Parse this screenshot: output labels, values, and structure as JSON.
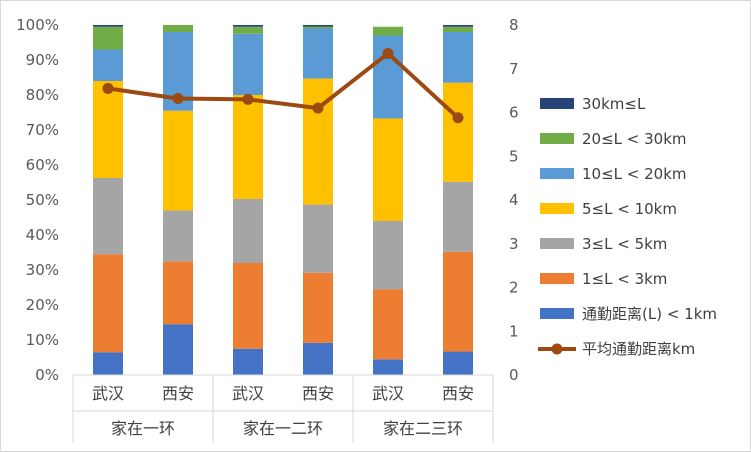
{
  "chart_data": {
    "type": "bar",
    "stacked": true,
    "categories": [
      "武汉",
      "西安",
      "武汉",
      "西安",
      "武汉",
      "西安"
    ],
    "groups": [
      {
        "label": "家在一环",
        "members": [
          0,
          1
        ]
      },
      {
        "label": "家在一二环",
        "members": [
          2,
          3
        ]
      },
      {
        "label": "家在二三环",
        "members": [
          4,
          5
        ]
      }
    ],
    "y_left": {
      "min": 0,
      "max": 100,
      "step": 10,
      "ticks": [
        "0%",
        "10%",
        "20%",
        "30%",
        "40%",
        "50%",
        "60%",
        "70%",
        "80%",
        "90%",
        "100%"
      ]
    },
    "y_right": {
      "min": 0,
      "max": 8,
      "step": 1,
      "ticks": [
        "0",
        "1",
        "2",
        "3",
        "4",
        "5",
        "6",
        "7",
        "8"
      ]
    },
    "series": [
      {
        "name": "通勤距离(L) < 1km",
        "color": "#4472c4",
        "values": [
          6.5,
          14.5,
          7.5,
          9.2,
          4.5,
          6.7
        ]
      },
      {
        "name": "1≤L < 3km",
        "color": "#ed7d31",
        "values": [
          28.0,
          18.0,
          24.5,
          20.0,
          20.0,
          28.5
        ]
      },
      {
        "name": "3≤L < 5km",
        "color": "#a5a5a5",
        "values": [
          21.8,
          14.5,
          18.3,
          19.5,
          19.5,
          20.0
        ]
      },
      {
        "name": "5≤L < 10km",
        "color": "#ffc000",
        "values": [
          27.7,
          28.5,
          29.7,
          36.0,
          29.3,
          28.3
        ]
      },
      {
        "name": "10≤L < 20km",
        "color": "#5b9bd5",
        "values": [
          9.0,
          22.5,
          17.5,
          14.3,
          23.7,
          14.5
        ]
      },
      {
        "name": "20≤L < 30km",
        "color": "#70ad47",
        "values": [
          6.5,
          2.0,
          2.0,
          0.5,
          2.5,
          1.5
        ]
      },
      {
        "name": "30km≤L",
        "color": "#264478",
        "values": [
          0.5,
          0.0,
          0.5,
          0.5,
          0.0,
          0.5
        ]
      }
    ],
    "line": {
      "name": "平均通勤距离km",
      "color": "#9c4a12",
      "axis": "right",
      "values": [
        6.55,
        6.32,
        6.3,
        6.1,
        7.35,
        5.88
      ]
    },
    "legend_order": [
      "30km≤L",
      "20≤L < 30km",
      "10≤L < 20km",
      "5≤L < 10km",
      "3≤L < 5km",
      "1≤L < 3km",
      "通勤距离(L) < 1km",
      "平均通勤距离km"
    ],
    "legend_position": "right",
    "grid": false
  }
}
